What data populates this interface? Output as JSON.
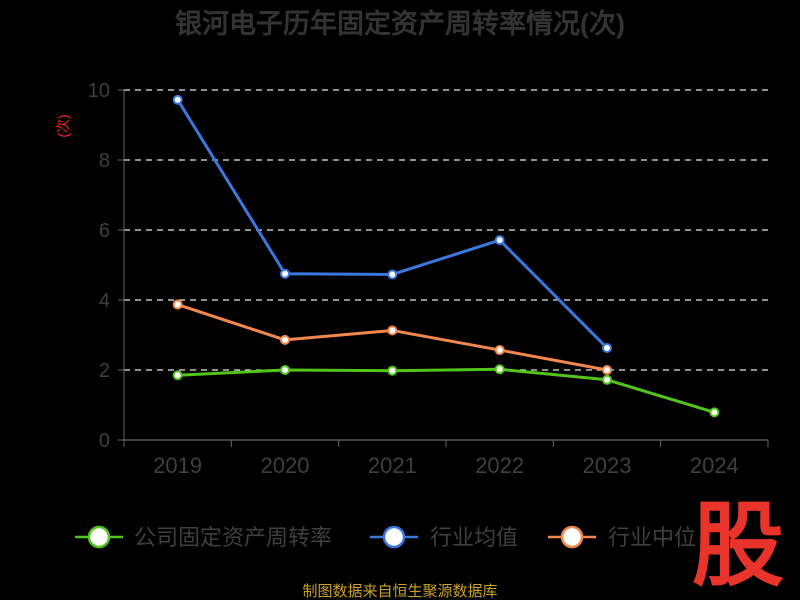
{
  "chart_data": {
    "type": "line",
    "title": "银河电子历年固定资产周转率情况(次)",
    "ylabel": "(次)",
    "xlabel": "",
    "categories": [
      "2019",
      "2020",
      "2021",
      "2022",
      "2023",
      "2024"
    ],
    "ylim": [
      0,
      10
    ],
    "yticks": [
      0,
      2,
      4,
      6,
      8,
      10
    ],
    "grid": true,
    "legend_position": "bottom",
    "series": [
      {
        "name": "公司固定资产周转率",
        "color": "#52c41a",
        "values": [
          1.85,
          2.0,
          1.98,
          2.02,
          1.72,
          0.79
        ]
      },
      {
        "name": "行业均值",
        "color": "#3a78e0",
        "values": [
          9.72,
          4.75,
          4.73,
          5.71,
          2.63,
          null
        ]
      },
      {
        "name": "行业中位",
        "color": "#f4874b",
        "values": [
          3.87,
          2.86,
          3.13,
          2.57,
          2.0,
          null
        ]
      }
    ]
  },
  "source_text": "制图数据来自恒生聚源数据库",
  "watermark_text": "股",
  "colors": {
    "background": "#000000",
    "grid": "#e6e6e6",
    "axis": "#666666",
    "source": "#c9a227",
    "watermark": "#e8342a"
  }
}
